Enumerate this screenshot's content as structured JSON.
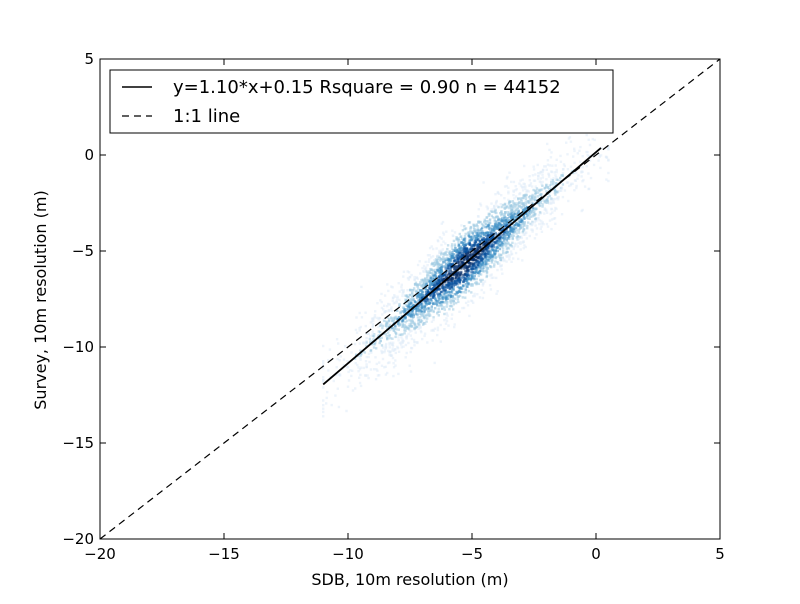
{
  "chart_data": {
    "type": "scatter",
    "style": "density-scatter",
    "xlabel": "SDB, 10m resolution (m)",
    "ylabel": "Survey, 10m resolution (m)",
    "xlim": [
      -20,
      5
    ],
    "ylim": [
      -20,
      5
    ],
    "x_ticks": [
      -20,
      -15,
      -10,
      -5,
      0,
      5
    ],
    "y_ticks": [
      -20,
      -15,
      -10,
      -5,
      0,
      5
    ],
    "x_tick_labels": [
      "−20",
      "−15",
      "−10",
      "−5",
      "0",
      "5"
    ],
    "y_tick_labels": [
      "−20",
      "−15",
      "−10",
      "−5",
      "0",
      "5"
    ],
    "grid": false,
    "legend_position": "top-left",
    "colormap": [
      "#deebf7",
      "#9ecae1",
      "#4292c6",
      "#08519c",
      "#08306b"
    ],
    "density_points": {
      "x_range": [
        -11,
        0.5
      ],
      "center_x": -5.3,
      "center_y": -5.6
    },
    "series": [
      {
        "name": "y=1.10*x+0.15 Rsquare = 0.90 n = 44152",
        "kind": "regression-line",
        "style": "solid",
        "slope": 1.1,
        "intercept": 0.15,
        "x": [
          -11,
          0.2
        ],
        "y": [
          -11.95,
          0.37
        ]
      },
      {
        "name": "1:1 line",
        "kind": "reference-line",
        "style": "dashed",
        "x": [
          -20,
          5
        ],
        "y": [
          -20,
          5
        ]
      }
    ]
  }
}
